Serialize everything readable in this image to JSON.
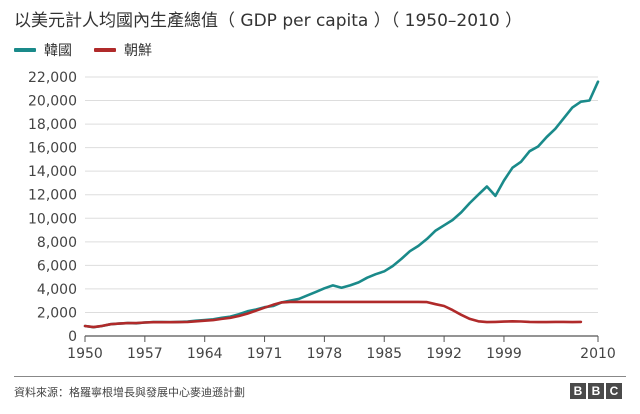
{
  "chart_data": {
    "type": "line",
    "title": "以美元計人均國內生產總值（ GDP per capita ）（ 1950–2010 ）",
    "xlabel": "",
    "ylabel": "",
    "xlim": [
      1950,
      2010
    ],
    "ylim": [
      0,
      22000
    ],
    "yticks": [
      0,
      2000,
      4000,
      6000,
      8000,
      10000,
      12000,
      14000,
      16000,
      18000,
      20000,
      22000
    ],
    "ytick_labels": [
      "0",
      "2,000",
      "4,000",
      "6,000",
      "8,000",
      "10,000",
      "12,000",
      "14,000",
      "16,000",
      "18,000",
      "20,000",
      "22,000"
    ],
    "xticks": [
      1950,
      1957,
      1964,
      1971,
      1978,
      1985,
      1992,
      1999,
      2010
    ],
    "xtick_labels": [
      "1950",
      "1957",
      "1964",
      "1971",
      "1978",
      "1985",
      "1992",
      "1999",
      "2010"
    ],
    "grid": "horizontal",
    "legend_position": "top-left",
    "series": [
      {
        "name": "韓國",
        "color": "#1a8a8a",
        "points": [
          [
            1950,
            850
          ],
          [
            1951,
            750
          ],
          [
            1952,
            850
          ],
          [
            1953,
            1000
          ],
          [
            1954,
            1050
          ],
          [
            1955,
            1100
          ],
          [
            1956,
            1080
          ],
          [
            1957,
            1150
          ],
          [
            1958,
            1180
          ],
          [
            1959,
            1180
          ],
          [
            1960,
            1170
          ],
          [
            1961,
            1200
          ],
          [
            1962,
            1220
          ],
          [
            1963,
            1300
          ],
          [
            1964,
            1360
          ],
          [
            1965,
            1420
          ],
          [
            1966,
            1550
          ],
          [
            1967,
            1650
          ],
          [
            1968,
            1850
          ],
          [
            1969,
            2100
          ],
          [
            1970,
            2250
          ],
          [
            1971,
            2450
          ],
          [
            1972,
            2550
          ],
          [
            1973,
            2850
          ],
          [
            1974,
            3000
          ],
          [
            1975,
            3150
          ],
          [
            1976,
            3450
          ],
          [
            1977,
            3750
          ],
          [
            1978,
            4050
          ],
          [
            1979,
            4300
          ],
          [
            1980,
            4100
          ],
          [
            1981,
            4300
          ],
          [
            1982,
            4550
          ],
          [
            1983,
            4950
          ],
          [
            1984,
            5250
          ],
          [
            1985,
            5500
          ],
          [
            1986,
            5950
          ],
          [
            1987,
            6550
          ],
          [
            1988,
            7200
          ],
          [
            1989,
            7650
          ],
          [
            1990,
            8250
          ],
          [
            1991,
            8950
          ],
          [
            1992,
            9400
          ],
          [
            1993,
            9850
          ],
          [
            1994,
            10500
          ],
          [
            1995,
            11300
          ],
          [
            1996,
            12000
          ],
          [
            1997,
            12700
          ],
          [
            1998,
            11900
          ],
          [
            1999,
            13200
          ],
          [
            2000,
            14300
          ],
          [
            2001,
            14800
          ],
          [
            2002,
            15700
          ],
          [
            2003,
            16100
          ],
          [
            2004,
            16900
          ],
          [
            2005,
            17600
          ],
          [
            2006,
            18500
          ],
          [
            2007,
            19400
          ],
          [
            2008,
            19900
          ],
          [
            2009,
            20000
          ],
          [
            2010,
            21600
          ]
        ]
      },
      {
        "name": "朝鮮",
        "color": "#b02a2a",
        "points": [
          [
            1950,
            850
          ],
          [
            1951,
            760
          ],
          [
            1952,
            860
          ],
          [
            1953,
            1000
          ],
          [
            1954,
            1050
          ],
          [
            1955,
            1100
          ],
          [
            1956,
            1100
          ],
          [
            1957,
            1150
          ],
          [
            1958,
            1170
          ],
          [
            1959,
            1170
          ],
          [
            1960,
            1170
          ],
          [
            1961,
            1180
          ],
          [
            1962,
            1200
          ],
          [
            1963,
            1250
          ],
          [
            1964,
            1300
          ],
          [
            1965,
            1350
          ],
          [
            1966,
            1450
          ],
          [
            1967,
            1550
          ],
          [
            1968,
            1700
          ],
          [
            1969,
            1900
          ],
          [
            1970,
            2150
          ],
          [
            1971,
            2400
          ],
          [
            1972,
            2650
          ],
          [
            1973,
            2850
          ],
          [
            1974,
            2900
          ],
          [
            1975,
            2900
          ],
          [
            1976,
            2900
          ],
          [
            1977,
            2900
          ],
          [
            1978,
            2900
          ],
          [
            1979,
            2900
          ],
          [
            1980,
            2900
          ],
          [
            1981,
            2900
          ],
          [
            1982,
            2900
          ],
          [
            1983,
            2900
          ],
          [
            1984,
            2900
          ],
          [
            1985,
            2900
          ],
          [
            1986,
            2900
          ],
          [
            1987,
            2900
          ],
          [
            1988,
            2900
          ],
          [
            1989,
            2900
          ],
          [
            1990,
            2880
          ],
          [
            1991,
            2700
          ],
          [
            1992,
            2550
          ],
          [
            1993,
            2200
          ],
          [
            1994,
            1800
          ],
          [
            1995,
            1450
          ],
          [
            1996,
            1250
          ],
          [
            1997,
            1180
          ],
          [
            1998,
            1200
          ],
          [
            1999,
            1220
          ],
          [
            2000,
            1250
          ],
          [
            2001,
            1230
          ],
          [
            2002,
            1200
          ],
          [
            2003,
            1180
          ],
          [
            2004,
            1180
          ],
          [
            2005,
            1200
          ],
          [
            2006,
            1200
          ],
          [
            2007,
            1180
          ],
          [
            2008,
            1200
          ]
        ]
      }
    ]
  },
  "footer": {
    "source": "資料來源：格羅寧根增長與發展中心麥迪遜計劃",
    "brand_letters": [
      "B",
      "B",
      "C"
    ]
  }
}
